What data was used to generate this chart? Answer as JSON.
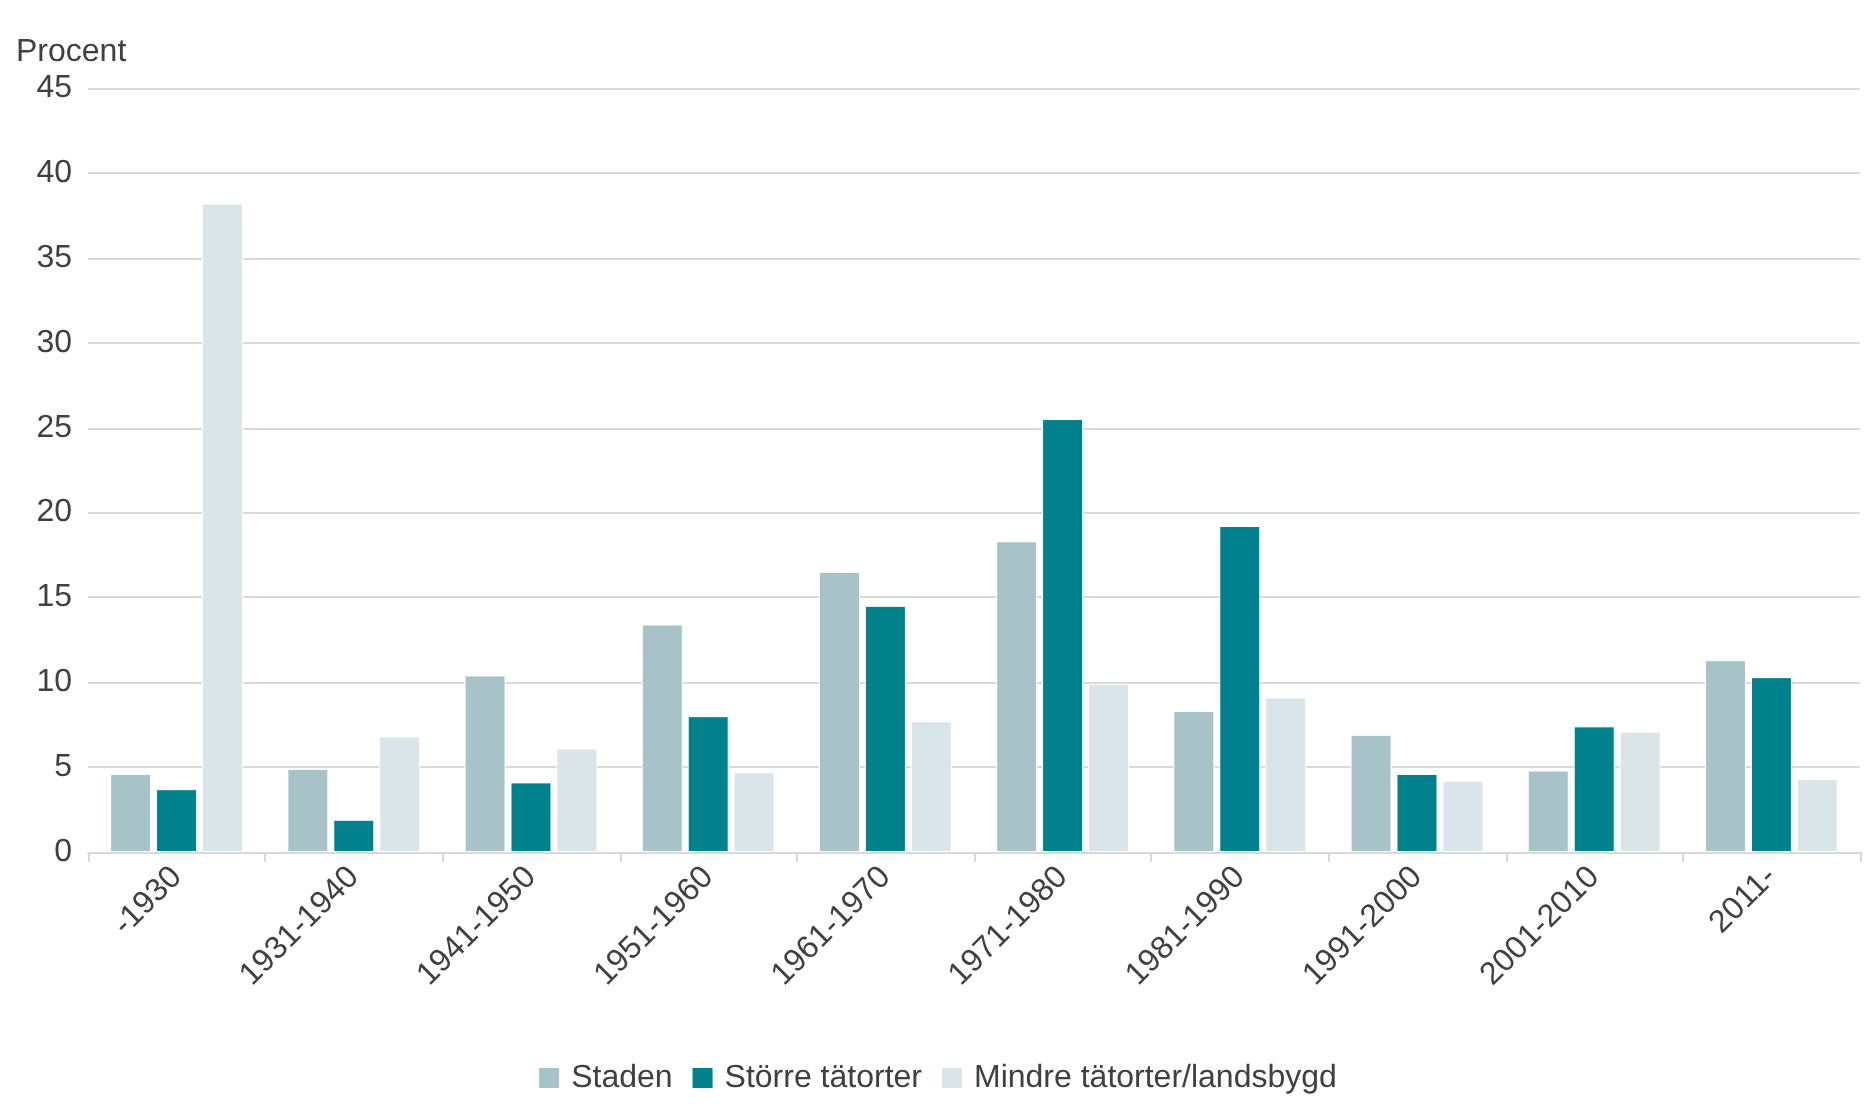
{
  "chart_data": {
    "type": "bar",
    "ylabel": "Procent",
    "categories": [
      "-1930",
      "1931-1940",
      "1941-1950",
      "1951-1960",
      "1961-1970",
      "1971-1980",
      "1981-1990",
      "1991-2000",
      "2001-2010",
      "2011-"
    ],
    "series": [
      {
        "name": "Staden",
        "color": "#a7c3c8",
        "values": [
          4.6,
          4.9,
          10.4,
          13.4,
          16.5,
          18.3,
          8.3,
          6.9,
          4.8,
          11.3
        ]
      },
      {
        "name": "Större tätorter",
        "color": "#00818c",
        "values": [
          3.7,
          1.9,
          4.1,
          8.0,
          14.5,
          25.5,
          19.2,
          4.6,
          7.4,
          10.3
        ]
      },
      {
        "name": "Mindre tätorter/landsbygd",
        "color": "#d9e5e9",
        "values": [
          38.2,
          6.8,
          6.1,
          4.7,
          7.7,
          9.9,
          9.1,
          4.2,
          7.1,
          4.3
        ]
      }
    ],
    "ylim": [
      0,
      45
    ],
    "yticks": [
      0,
      5,
      10,
      15,
      20,
      25,
      30,
      35,
      40,
      45
    ],
    "grid": "y",
    "legend": "bottom"
  }
}
